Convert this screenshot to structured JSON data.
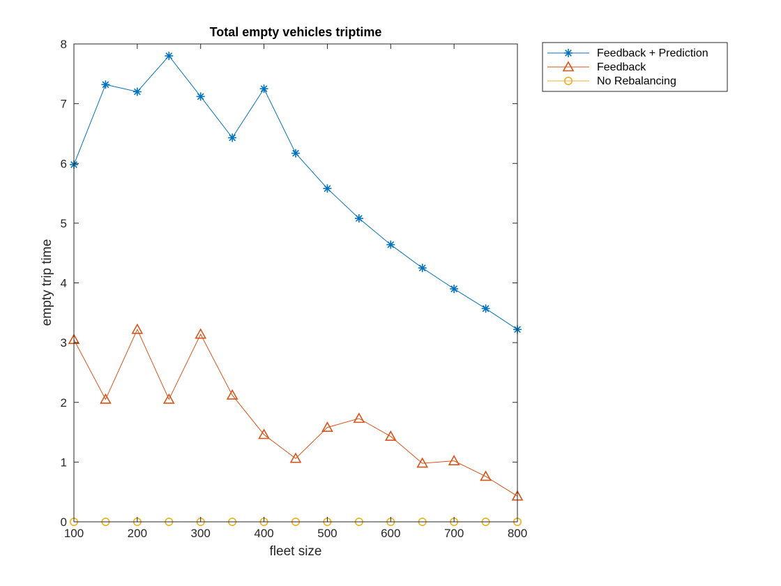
{
  "chart_data": {
    "type": "line",
    "title": "Total empty vehicles triptime",
    "xlabel": "fleet size",
    "ylabel": "empty trip time",
    "xlim": [
      100,
      800
    ],
    "ylim": [
      0,
      8
    ],
    "xticks": [
      100,
      200,
      300,
      400,
      500,
      600,
      700,
      800
    ],
    "yticks": [
      0,
      1,
      2,
      3,
      4,
      5,
      6,
      7,
      8
    ],
    "grid": false,
    "legend_position": "outside-top-right",
    "x": [
      100,
      150,
      200,
      250,
      300,
      350,
      400,
      450,
      500,
      550,
      600,
      650,
      700,
      750,
      800
    ],
    "series": [
      {
        "name": "Feedback + Prediction",
        "color": "#0072BD",
        "marker": "asterisk",
        "values": [
          5.98,
          7.32,
          7.2,
          7.8,
          7.12,
          6.43,
          7.25,
          6.17,
          5.58,
          5.08,
          4.64,
          4.25,
          3.9,
          3.57,
          3.22
        ]
      },
      {
        "name": "Feedback",
        "color": "#D95319",
        "marker": "triangle",
        "values": [
          3.05,
          2.05,
          3.22,
          2.05,
          3.14,
          2.12,
          1.46,
          1.06,
          1.58,
          1.73,
          1.43,
          0.98,
          1.02,
          0.76,
          0.43
        ]
      },
      {
        "name": "No Rebalancing",
        "color": "#EDB120",
        "marker": "circle",
        "values": [
          0,
          0,
          0,
          0,
          0,
          0,
          0,
          0,
          0,
          0,
          0,
          0,
          0,
          0,
          0
        ]
      }
    ]
  }
}
